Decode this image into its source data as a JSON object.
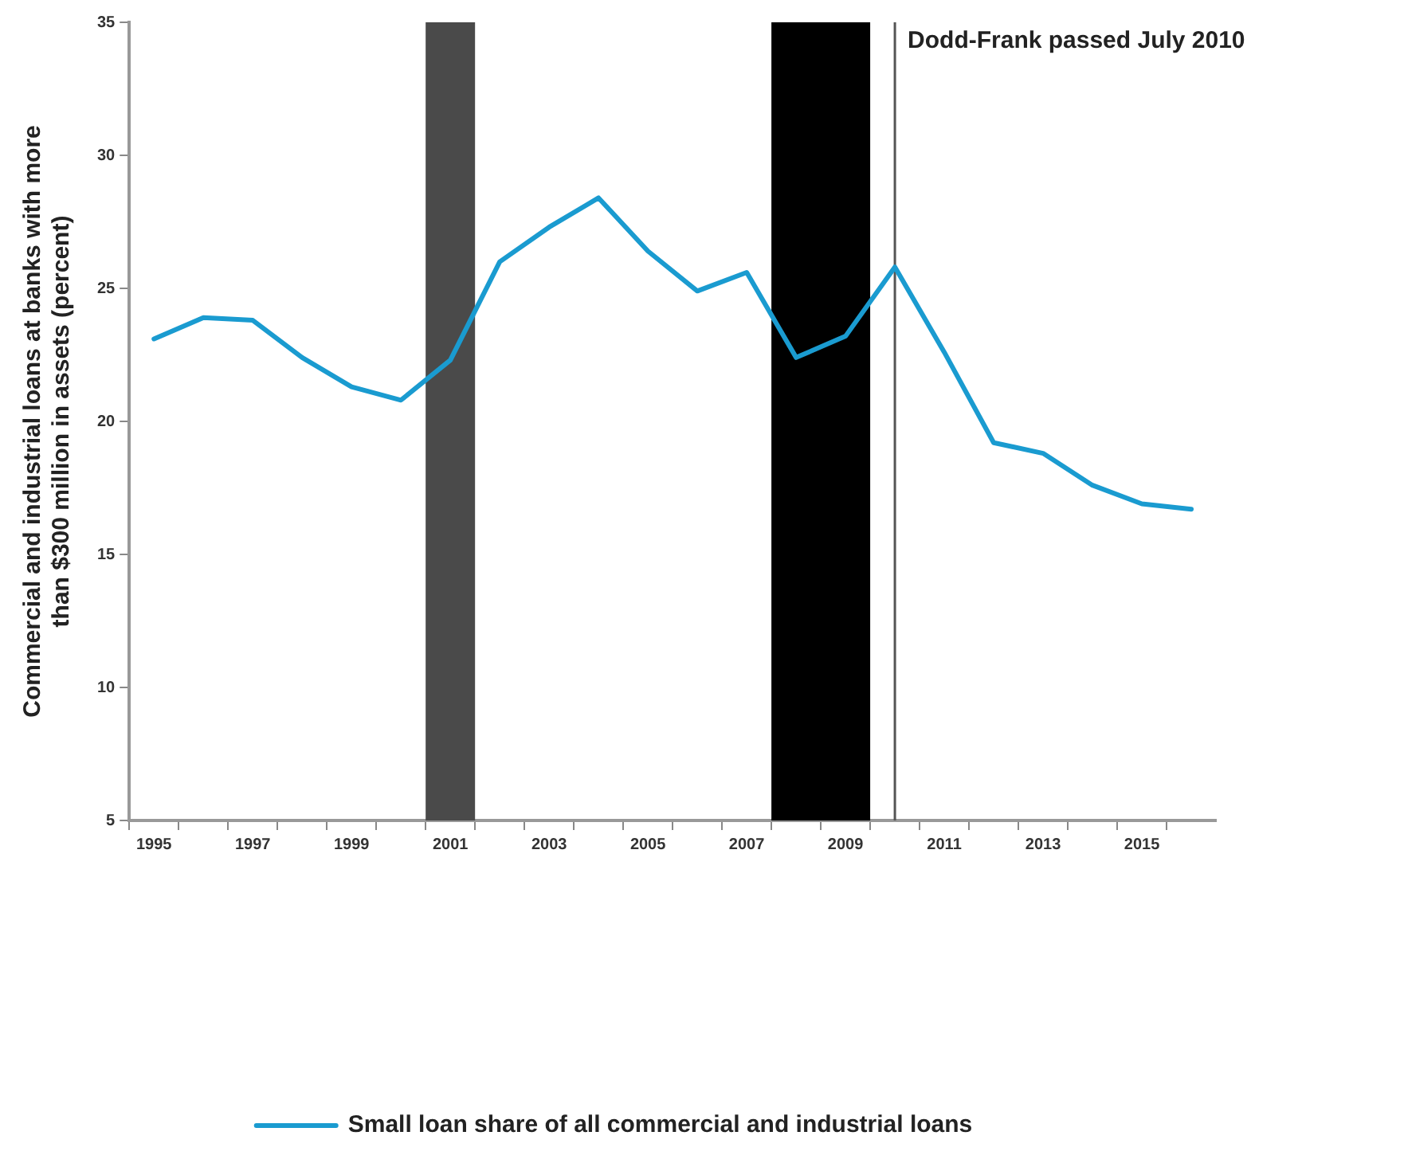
{
  "chart_data": {
    "type": "line",
    "ylabel": "Commercial and industrial loans at banks with more than $300 million in assets (percent)",
    "x": [
      1995,
      1996,
      1997,
      1998,
      1999,
      2000,
      2001,
      2002,
      2003,
      2004,
      2005,
      2006,
      2007,
      2008,
      2009,
      2010,
      2011,
      2012,
      2013,
      2014,
      2015,
      2016
    ],
    "xlim": [
      1994.5,
      2016.5
    ],
    "xticks": [
      {
        "value": 1994.5,
        "label": null
      },
      {
        "value": 1995,
        "label": "1995"
      },
      {
        "value": 1995.5,
        "label": null
      },
      {
        "value": 1996.5,
        "label": null
      },
      {
        "value": 1997,
        "label": "1997"
      },
      {
        "value": 1997.5,
        "label": null
      },
      {
        "value": 1998.5,
        "label": null
      },
      {
        "value": 1999,
        "label": "1999"
      },
      {
        "value": 1999.5,
        "label": null
      },
      {
        "value": 2000.5,
        "label": null
      },
      {
        "value": 2001,
        "label": "2001"
      },
      {
        "value": 2001.5,
        "label": null
      },
      {
        "value": 2002.5,
        "label": null
      },
      {
        "value": 2003,
        "label": "2003"
      },
      {
        "value": 2003.5,
        "label": null
      },
      {
        "value": 2004.5,
        "label": null
      },
      {
        "value": 2005,
        "label": "2005"
      },
      {
        "value": 2005.5,
        "label": null
      },
      {
        "value": 2006.5,
        "label": null
      },
      {
        "value": 2007,
        "label": "2007"
      },
      {
        "value": 2007.5,
        "label": null
      },
      {
        "value": 2008.5,
        "label": null
      },
      {
        "value": 2009,
        "label": "2009"
      },
      {
        "value": 2009.5,
        "label": null
      },
      {
        "value": 2010.5,
        "label": null
      },
      {
        "value": 2011,
        "label": "2011"
      },
      {
        "value": 2011.5,
        "label": null
      },
      {
        "value": 2012.5,
        "label": null
      },
      {
        "value": 2013,
        "label": "2013"
      },
      {
        "value": 2013.5,
        "label": null
      },
      {
        "value": 2014.5,
        "label": null
      },
      {
        "value": 2015,
        "label": "2015"
      },
      {
        "value": 2015.5,
        "label": null
      }
    ],
    "ylim": [
      5,
      35
    ],
    "yticks": [
      5,
      10,
      15,
      20,
      25,
      30,
      35
    ],
    "series": [
      {
        "name": "Small loan share of all commercial and industrial loans",
        "color": "#1a9bd0",
        "values": [
          23.1,
          23.9,
          23.8,
          22.4,
          21.3,
          20.8,
          22.3,
          26.0,
          27.3,
          28.4,
          26.4,
          24.9,
          25.6,
          22.4,
          23.2,
          25.8,
          22.6,
          19.2,
          18.8,
          17.6,
          16.9,
          16.7
        ]
      }
    ],
    "bands": [
      {
        "axis": "x",
        "from": 2000.5,
        "to": 2001.5,
        "color": "#4a4a4a"
      },
      {
        "axis": "x",
        "from": 2007.5,
        "to": 2009.5,
        "color": "#000000"
      }
    ],
    "ref_lines": [
      {
        "axis": "x",
        "value": 2010,
        "label": "Dodd-Frank passed July 2010",
        "color": "#555555"
      }
    ],
    "grid": false,
    "legend": "bottom",
    "marker": "none",
    "line_style": "solid"
  }
}
